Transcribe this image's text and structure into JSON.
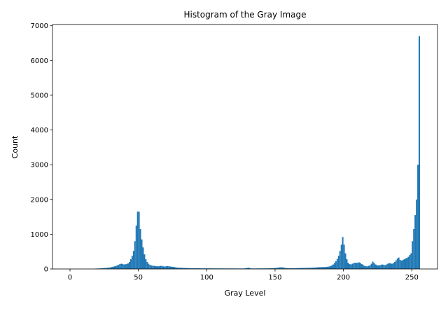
{
  "chart_data": {
    "type": "histogram",
    "title": "Histogram of the Gray Image",
    "xlabel": "Gray Level",
    "ylabel": "Count",
    "color": "#1f77b4",
    "bins": [
      0,
      1,
      2,
      3,
      4,
      5,
      6,
      7,
      8,
      9,
      10,
      11,
      12,
      13,
      14,
      15,
      16,
      17,
      18,
      19,
      20,
      21,
      22,
      23,
      24,
      25,
      26,
      27,
      28,
      29,
      30,
      31,
      32,
      33,
      34,
      35,
      36,
      37,
      38,
      39,
      40,
      41,
      42,
      43,
      44,
      45,
      46,
      47,
      48,
      49,
      50,
      51,
      52,
      53,
      54,
      55,
      56,
      57,
      58,
      59,
      60,
      61,
      62,
      63,
      64,
      65,
      66,
      67,
      68,
      69,
      70,
      71,
      72,
      73,
      74,
      75,
      76,
      77,
      78,
      79,
      80,
      81,
      82,
      83,
      84,
      85,
      86,
      87,
      88,
      89,
      90,
      91,
      92,
      93,
      94,
      95,
      96,
      97,
      98,
      99,
      100,
      101,
      102,
      103,
      104,
      105,
      106,
      107,
      108,
      109,
      110,
      111,
      112,
      113,
      114,
      115,
      116,
      117,
      118,
      119,
      120,
      121,
      122,
      123,
      124,
      125,
      126,
      127,
      128,
      129,
      130,
      131,
      132,
      133,
      134,
      135,
      136,
      137,
      138,
      139,
      140,
      141,
      142,
      143,
      144,
      145,
      146,
      147,
      148,
      149,
      150,
      151,
      152,
      153,
      154,
      155,
      156,
      157,
      158,
      159,
      160,
      161,
      162,
      163,
      164,
      165,
      166,
      167,
      168,
      169,
      170,
      171,
      172,
      173,
      174,
      175,
      176,
      177,
      178,
      179,
      180,
      181,
      182,
      183,
      184,
      185,
      186,
      187,
      188,
      189,
      190,
      191,
      192,
      193,
      194,
      195,
      196,
      197,
      198,
      199,
      200,
      201,
      202,
      203,
      204,
      205,
      206,
      207,
      208,
      209,
      210,
      211,
      212,
      213,
      214,
      215,
      216,
      217,
      218,
      219,
      220,
      221,
      222,
      223,
      224,
      225,
      226,
      227,
      228,
      229,
      230,
      231,
      232,
      233,
      234,
      235,
      236,
      237,
      238,
      239,
      240,
      241,
      242,
      243,
      244,
      245,
      246,
      247,
      248,
      249,
      250,
      251,
      252,
      253,
      254,
      255,
      256
    ],
    "values": [
      0,
      0,
      0,
      0,
      0,
      0,
      0,
      0,
      0,
      0,
      0,
      0,
      0,
      0,
      0,
      0,
      0,
      0,
      10,
      12,
      14,
      15,
      18,
      20,
      22,
      28,
      32,
      36,
      40,
      45,
      55,
      65,
      75,
      85,
      100,
      120,
      140,
      150,
      145,
      130,
      135,
      140,
      160,
      200,
      280,
      380,
      520,
      800,
      1250,
      1650,
      1650,
      1150,
      850,
      620,
      420,
      280,
      200,
      150,
      120,
      100,
      95,
      90,
      85,
      80,
      75,
      80,
      90,
      85,
      75,
      70,
      80,
      85,
      75,
      70,
      65,
      60,
      55,
      45,
      40,
      38,
      36,
      35,
      33,
      30,
      28,
      26,
      25,
      24,
      22,
      22,
      20,
      20,
      20,
      20,
      20,
      18,
      18,
      18,
      18,
      18,
      18,
      18,
      18,
      18,
      16,
      16,
      16,
      16,
      16,
      16,
      16,
      16,
      15,
      15,
      15,
      15,
      15,
      15,
      15,
      15,
      15,
      14,
      14,
      14,
      14,
      14,
      14,
      14,
      20,
      30,
      40,
      25,
      15,
      14,
      14,
      14,
      15,
      15,
      16,
      16,
      16,
      16,
      17,
      17,
      18,
      18,
      20,
      22,
      22,
      25,
      30,
      35,
      40,
      45,
      50,
      45,
      40,
      30,
      25,
      22,
      20,
      20,
      20,
      22,
      22,
      25,
      25,
      28,
      28,
      30,
      30,
      30,
      30,
      32,
      32,
      35,
      35,
      38,
      40,
      42,
      45,
      48,
      50,
      52,
      55,
      55,
      58,
      60,
      65,
      70,
      80,
      100,
      130,
      170,
      220,
      290,
      380,
      520,
      700,
      920,
      700,
      450,
      280,
      180,
      140,
      130,
      150,
      170,
      180,
      175,
      180,
      190,
      170,
      140,
      110,
      90,
      80,
      75,
      90,
      110,
      150,
      210,
      170,
      130,
      110,
      100,
      110,
      120,
      130,
      120,
      110,
      130,
      150,
      170,
      160,
      150,
      170,
      200,
      250,
      300,
      330,
      260,
      240,
      260,
      280,
      300,
      320,
      350,
      400,
      450,
      800,
      1150,
      1550,
      2000,
      3000,
      6700
    ],
    "xlim": [
      -12.8,
      268.8
    ],
    "ylim": [
      0,
      7035
    ],
    "xticks": [
      0,
      50,
      100,
      150,
      200,
      250
    ],
    "yticks": [
      0,
      1000,
      2000,
      3000,
      4000,
      5000,
      6000,
      7000
    ]
  }
}
